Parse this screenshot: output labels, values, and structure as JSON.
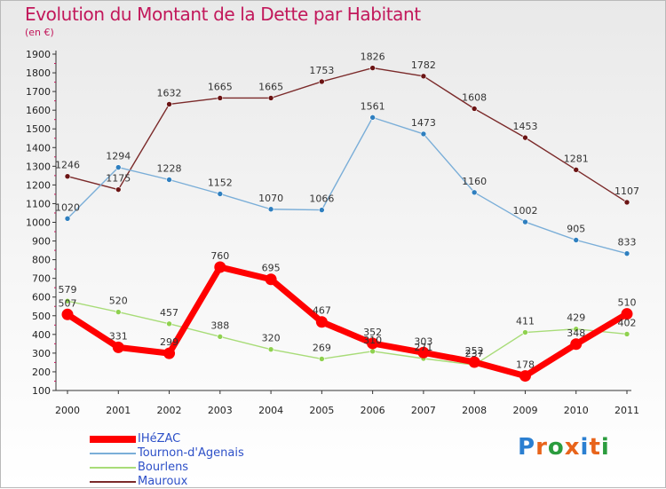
{
  "title": "Evolution du Montant de la Dette par Habitant",
  "subtitle": "(en €)",
  "logo": {
    "text": "Proxiti",
    "colors": [
      "#2b7fd1",
      "#e8641b",
      "#2b9c3e",
      "#e8641b",
      "#2b7fd1",
      "#e8641b",
      "#2b9c3e"
    ]
  },
  "chart_data": {
    "type": "line",
    "x": [
      "2000",
      "2001",
      "2002",
      "2003",
      "2004",
      "2005",
      "2006",
      "2007",
      "2008",
      "2009",
      "2010",
      "2011"
    ],
    "ylim": [
      100,
      1900
    ],
    "yticks": [
      100,
      200,
      300,
      400,
      500,
      600,
      700,
      800,
      900,
      1000,
      1100,
      1200,
      1300,
      1400,
      1500,
      1600,
      1700,
      1800,
      1900
    ],
    "grid": false,
    "legend_position": "bottom-left",
    "series": [
      {
        "name": "IHéZAC",
        "color": "#ff0000",
        "marker": "#ff0000",
        "values": [
          507,
          331,
          299,
          760,
          695,
          467,
          352,
          303,
          252,
          178,
          348,
          510
        ]
      },
      {
        "name": "Tournon-d'Agenais",
        "color": "#7aaed8",
        "marker": "#2f7fbf",
        "values": [
          1020,
          1294,
          1228,
          1152,
          1070,
          1066,
          1561,
          1473,
          1160,
          1002,
          905,
          833
        ]
      },
      {
        "name": "Bourlens",
        "color": "#a8dc78",
        "marker": "#8fd14f",
        "values": [
          579,
          520,
          457,
          388,
          320,
          269,
          310,
          271,
          237,
          411,
          429,
          402
        ]
      },
      {
        "name": "Mauroux",
        "color": "#7b2a2a",
        "marker": "#6b1414",
        "values": [
          1246,
          1175,
          1632,
          1665,
          1665,
          1753,
          1826,
          1782,
          1608,
          1453,
          1281,
          1107
        ]
      }
    ],
    "value_labels": [
      {
        "series": 0,
        "labels": [
          "507",
          "331",
          "299",
          "760",
          "695",
          "467",
          "352",
          "303",
          "252",
          "178",
          "348",
          "510"
        ]
      },
      {
        "series": 1,
        "labels": [
          "1020",
          "1294",
          "1228",
          "1152",
          "1070",
          "1066",
          "1561",
          "1473",
          "1160",
          "1002",
          "905",
          "833"
        ]
      },
      {
        "series": 2,
        "labels": [
          "579",
          "520",
          "457",
          "388",
          "320",
          "269",
          "310",
          "271",
          "237",
          "411",
          "429",
          "402"
        ]
      },
      {
        "series": 3,
        "labels": [
          "1246",
          "1175",
          "1632",
          "1665",
          "1665",
          "1753",
          "1826",
          "1782",
          "1608",
          "1453",
          "1281",
          "1107"
        ]
      }
    ]
  }
}
